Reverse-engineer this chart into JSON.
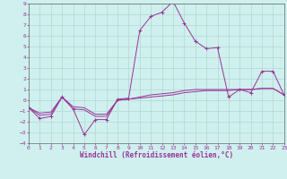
{
  "xlabel": "Windchill (Refroidissement éolien,°C)",
  "background_color": "#cff0ee",
  "grid_color": "#b0d8d0",
  "line_color": "#993399",
  "hours": [
    0,
    1,
    2,
    3,
    4,
    5,
    6,
    7,
    8,
    9,
    10,
    11,
    12,
    13,
    14,
    15,
    16,
    17,
    18,
    19,
    20,
    21,
    22,
    23
  ],
  "series1": [
    -0.7,
    -1.7,
    -1.5,
    0.3,
    -0.8,
    -3.2,
    -1.8,
    -1.8,
    0.1,
    0.2,
    6.5,
    7.8,
    8.2,
    9.2,
    7.2,
    5.5,
    4.8,
    4.9,
    0.3,
    1.0,
    0.7,
    2.7,
    2.7,
    0.5
  ],
  "series2": [
    -0.7,
    -1.4,
    -1.3,
    0.3,
    -0.8,
    -0.9,
    -1.5,
    -1.5,
    0.0,
    0.1,
    0.2,
    0.3,
    0.4,
    0.5,
    0.7,
    0.8,
    0.9,
    0.9,
    0.9,
    1.0,
    1.0,
    1.1,
    1.1,
    0.5
  ],
  "series3": [
    -0.7,
    -1.2,
    -1.1,
    0.3,
    -0.6,
    -0.7,
    -1.3,
    -1.3,
    0.0,
    0.1,
    0.3,
    0.5,
    0.6,
    0.7,
    0.9,
    1.0,
    1.0,
    1.0,
    1.0,
    1.0,
    1.0,
    1.1,
    1.1,
    0.5
  ],
  "ylim": [
    -4,
    9
  ],
  "xlim": [
    0,
    23
  ],
  "yticks": [
    -4,
    -3,
    -2,
    -1,
    0,
    1,
    2,
    3,
    4,
    5,
    6,
    7,
    8,
    9
  ],
  "xticks": [
    0,
    1,
    2,
    3,
    4,
    5,
    6,
    7,
    8,
    9,
    10,
    11,
    12,
    13,
    14,
    15,
    16,
    17,
    18,
    19,
    20,
    21,
    22,
    23
  ],
  "tick_fontsize": 4.5,
  "xlabel_fontsize": 5.5
}
